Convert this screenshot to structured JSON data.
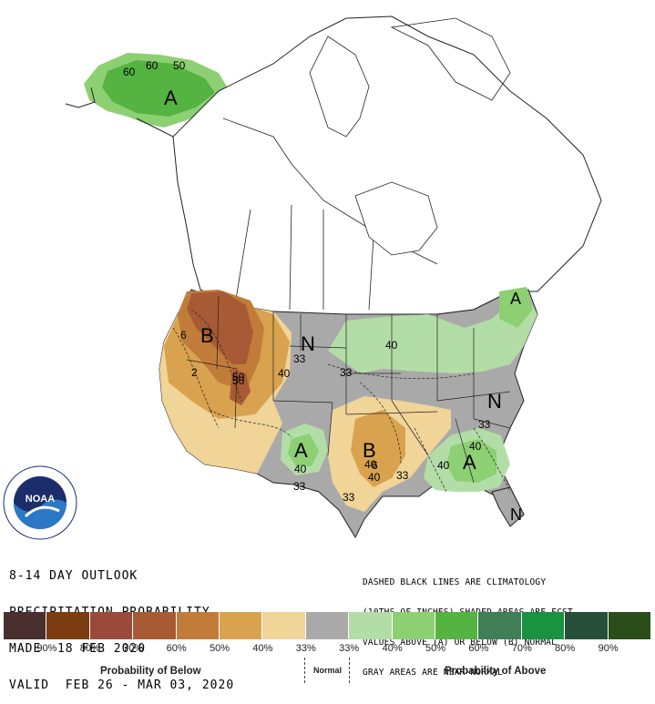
{
  "map": {
    "region_letters": [
      {
        "id": "alaska",
        "letter": "A"
      },
      {
        "id": "northwest",
        "letter": "B"
      },
      {
        "id": "north-plains",
        "letter": "N"
      },
      {
        "id": "texas",
        "letter": "A"
      },
      {
        "id": "south-central",
        "letter": "B"
      },
      {
        "id": "east",
        "letter": "N"
      },
      {
        "id": "southeast",
        "letter": "A"
      },
      {
        "id": "new-england",
        "letter": "A"
      },
      {
        "id": "florida",
        "letter": "N"
      }
    ],
    "contour_labels": [
      "50",
      "60",
      "60",
      "50",
      "33",
      "40",
      "33",
      "40",
      "50",
      "2",
      "6",
      "40",
      "33",
      "40",
      "40",
      "6",
      "40",
      "33",
      "33",
      "40",
      "33"
    ]
  },
  "outlook": {
    "line1": "8-14 DAY OUTLOOK",
    "line2": "PRECIPITATION PROBABILITY",
    "line3": "MADE  18 FEB 2020",
    "line4": "VALID  FEB 26 - MAR 03, 2020"
  },
  "note": {
    "line1": "DASHED BLACK LINES ARE CLIMATOLOGY",
    "line2": "(10THS OF INCHES) SHADED AREAS ARE FCST",
    "line3": "VALUES ABOVE (A) OR BELOW (B) NORMAL",
    "line4": "GRAY AREAS ARE NEAR-NORMAL"
  },
  "legend": {
    "colors": [
      "#4a2f2f",
      "#7a3c10",
      "#9a4a38",
      "#a85a34",
      "#c27c3a",
      "#d8a24e",
      "#f0d498",
      "#a9a9a9",
      "#b3dda6",
      "#8dcf73",
      "#55b341",
      "#3e7f55",
      "#1a9341",
      "#26503a",
      "#2a4d1a"
    ],
    "ticks": [
      "90%",
      "80%",
      "70%",
      "60%",
      "50%",
      "40%",
      "33%",
      "33%",
      "40%",
      "50%",
      "60%",
      "70%",
      "80%",
      "90%"
    ],
    "below_label": "Probability of Below",
    "normal_label": "Normal",
    "above_label": "Probability of Above"
  },
  "logo": {
    "text": "NOAA"
  }
}
